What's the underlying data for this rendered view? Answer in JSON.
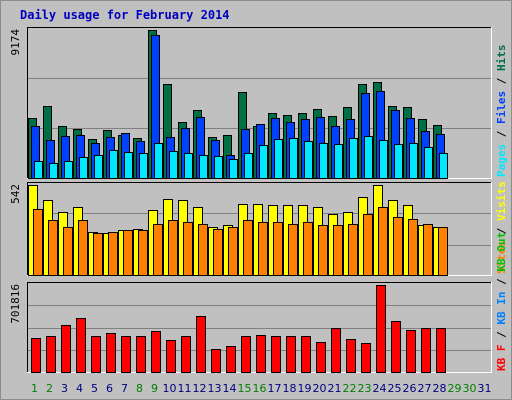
{
  "title": "Daily usage for February 2014",
  "colors": {
    "hits": "#006f44",
    "files": "#0040ff",
    "pages": "#00e8ff",
    "visits": "#ffff00",
    "sites": "#ff8000",
    "kbf": "#ff0000",
    "kbin": "#0080ff",
    "kbout": "#00c000",
    "weekday_label": "#00007f",
    "weekend_label": "#007f00"
  },
  "chart_data": [
    {
      "type": "bar",
      "name": "hits-files-pages",
      "x": [
        1,
        2,
        3,
        4,
        5,
        6,
        7,
        8,
        9,
        10,
        11,
        12,
        13,
        14,
        15,
        16,
        17,
        18,
        19,
        20,
        21,
        22,
        23,
        24,
        25,
        26,
        27,
        28
      ],
      "max_label": "9174",
      "ylim": [
        0,
        9174
      ],
      "right_label": [
        "Pages",
        " / ",
        "Files",
        " / ",
        "Hits"
      ],
      "series": [
        {
          "name": "Hits",
          "color": "#006f44",
          "values": [
            3700,
            4450,
            3250,
            3050,
            2400,
            2950,
            2650,
            2500,
            9150,
            5850,
            3450,
            4200,
            2550,
            2650,
            5350,
            3250,
            4000,
            3900,
            4050,
            4250,
            3850,
            4400,
            5850,
            5950,
            4450,
            4400,
            3650,
            3300
          ]
        },
        {
          "name": "Files",
          "color": "#0040ff",
          "values": [
            3200,
            2350,
            2600,
            2650,
            2150,
            2550,
            2800,
            2300,
            8850,
            2550,
            3100,
            3800,
            2350,
            1450,
            3050,
            3350,
            3700,
            3500,
            3650,
            3800,
            3250,
            3650,
            5250,
            5400,
            4200,
            3750,
            2900,
            2750
          ]
        },
        {
          "name": "Pages",
          "color": "#00e8ff",
          "values": [
            1050,
            900,
            1050,
            1300,
            1450,
            1750,
            1600,
            1550,
            2200,
            1700,
            1550,
            1450,
            1350,
            1150,
            1550,
            2050,
            2400,
            2500,
            2300,
            2200,
            2100,
            2450,
            2600,
            2350,
            2100,
            2150,
            1900,
            1550
          ]
        }
      ]
    },
    {
      "type": "bar",
      "name": "visits-sites",
      "x": [
        1,
        2,
        3,
        4,
        5,
        6,
        7,
        8,
        9,
        10,
        11,
        12,
        13,
        14,
        15,
        16,
        17,
        18,
        19,
        20,
        21,
        22,
        23,
        24,
        25,
        26,
        27,
        28
      ],
      "max_label": "542",
      "ylim": [
        0,
        542
      ],
      "right_label": [
        "Sites",
        " / ",
        "Visits"
      ],
      "series": [
        {
          "name": "Visits",
          "color": "#ffff00",
          "values": [
            540,
            450,
            380,
            410,
            260,
            250,
            270,
            280,
            390,
            460,
            450,
            410,
            290,
            300,
            430,
            430,
            420,
            420,
            420,
            410,
            370,
            380,
            470,
            540,
            450,
            420,
            300,
            290
          ]
        },
        {
          "name": "Sites",
          "color": "#ff8000",
          "values": [
            400,
            330,
            290,
            330,
            250,
            260,
            270,
            270,
            310,
            330,
            320,
            310,
            280,
            290,
            330,
            320,
            320,
            310,
            320,
            300,
            300,
            310,
            370,
            410,
            350,
            340,
            310,
            290
          ]
        }
      ]
    },
    {
      "type": "bar",
      "name": "kbf-kbin-kbout",
      "x": [
        1,
        2,
        3,
        4,
        5,
        6,
        7,
        8,
        9,
        10,
        11,
        12,
        13,
        14,
        15,
        16,
        17,
        18,
        19,
        20,
        21,
        22,
        23,
        24,
        25,
        26,
        27,
        28
      ],
      "max_label": "701816",
      "ylim": [
        0,
        701816
      ],
      "right_label": [
        "KB F",
        " / ",
        "KB In",
        " / ",
        "KB Out"
      ],
      "series": [
        {
          "name": "KB F",
          "color": "#ff0000",
          "values": [
            276000,
            290000,
            380000,
            436000,
            290000,
            318000,
            290000,
            290000,
            334000,
            262000,
            290000,
            450000,
            186000,
            211000,
            290000,
            296000,
            290000,
            290000,
            290000,
            240000,
            356000,
            263000,
            233000,
            701816,
            413000,
            342000,
            356000,
            356000
          ]
        }
      ]
    }
  ],
  "x_axis": {
    "labels": [
      "1",
      "2",
      "3",
      "4",
      "5",
      "6",
      "7",
      "8",
      "9",
      "10",
      "11",
      "12",
      "13",
      "14",
      "15",
      "16",
      "17",
      "18",
      "19",
      "20",
      "21",
      "22",
      "23",
      "24",
      "25",
      "26",
      "27",
      "28",
      "29",
      "30",
      "31"
    ],
    "weekend": [
      1,
      2,
      8,
      9,
      15,
      16,
      22,
      23,
      29,
      30
    ]
  }
}
